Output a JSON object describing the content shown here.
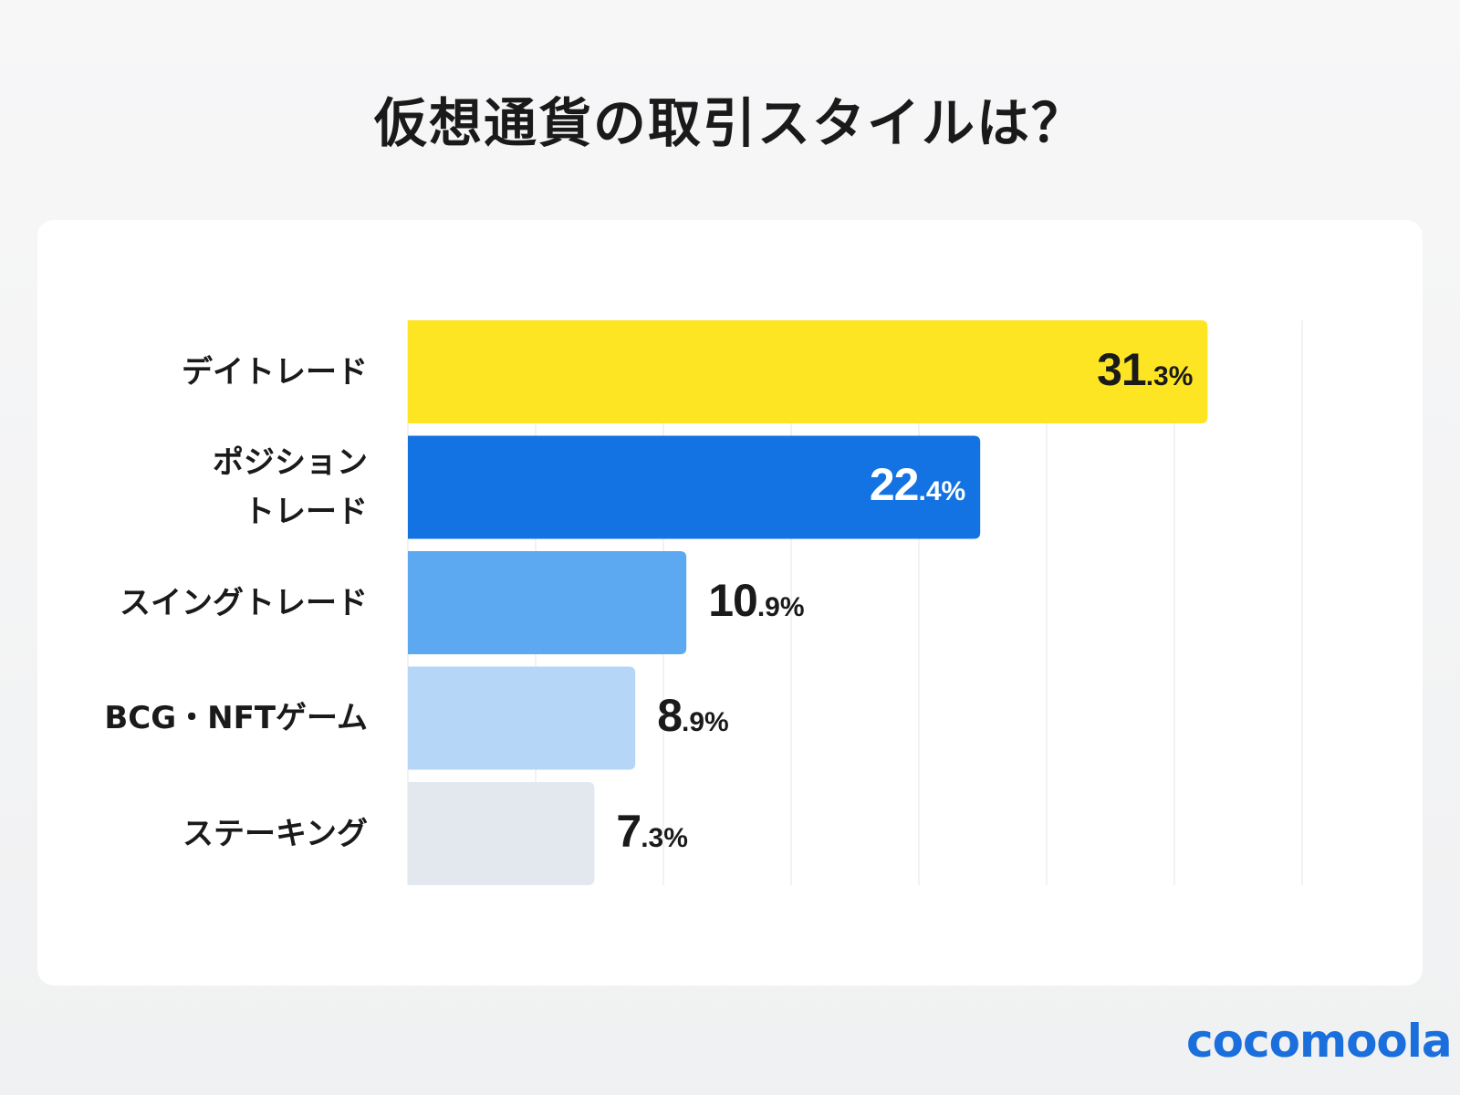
{
  "chart_data": {
    "type": "bar",
    "orientation": "horizontal",
    "title": "仮想通貨の取引スタイルは？",
    "categories": [
      "デイトレード",
      "ポジショントレード",
      "スイングトレード",
      "BCG・NFTゲーム",
      "ステーキング"
    ],
    "category_lines": [
      [
        "デイトレード"
      ],
      [
        "ポジション",
        "トレード"
      ],
      [
        "スイングトレード"
      ],
      [
        "BCG・NFTゲーム"
      ],
      [
        "ステーキング"
      ]
    ],
    "values": [
      31.3,
      22.4,
      10.9,
      8.9,
      7.3
    ],
    "value_labels": [
      [
        "31",
        ".3%"
      ],
      [
        "22",
        ".4%"
      ],
      [
        "10",
        ".9%"
      ],
      [
        "8",
        ".9%"
      ],
      [
        "7",
        ".3%"
      ]
    ],
    "colors": [
      "#fde523",
      "#1373e3",
      "#5ca8f1",
      "#b5d6f7",
      "#e3e8ef"
    ],
    "label_colors": [
      "#1a1a1a",
      "#ffffff",
      "#1a1a1a",
      "#1a1a1a",
      "#1a1a1a"
    ],
    "label_inside": [
      true,
      true,
      false,
      false,
      false
    ],
    "xlim": [
      0,
      35
    ],
    "grid_step": 5,
    "grid": true,
    "xlabel": "",
    "ylabel": ""
  },
  "brand": {
    "logo_text": "cocomoola",
    "color": "#1a6fdc"
  }
}
